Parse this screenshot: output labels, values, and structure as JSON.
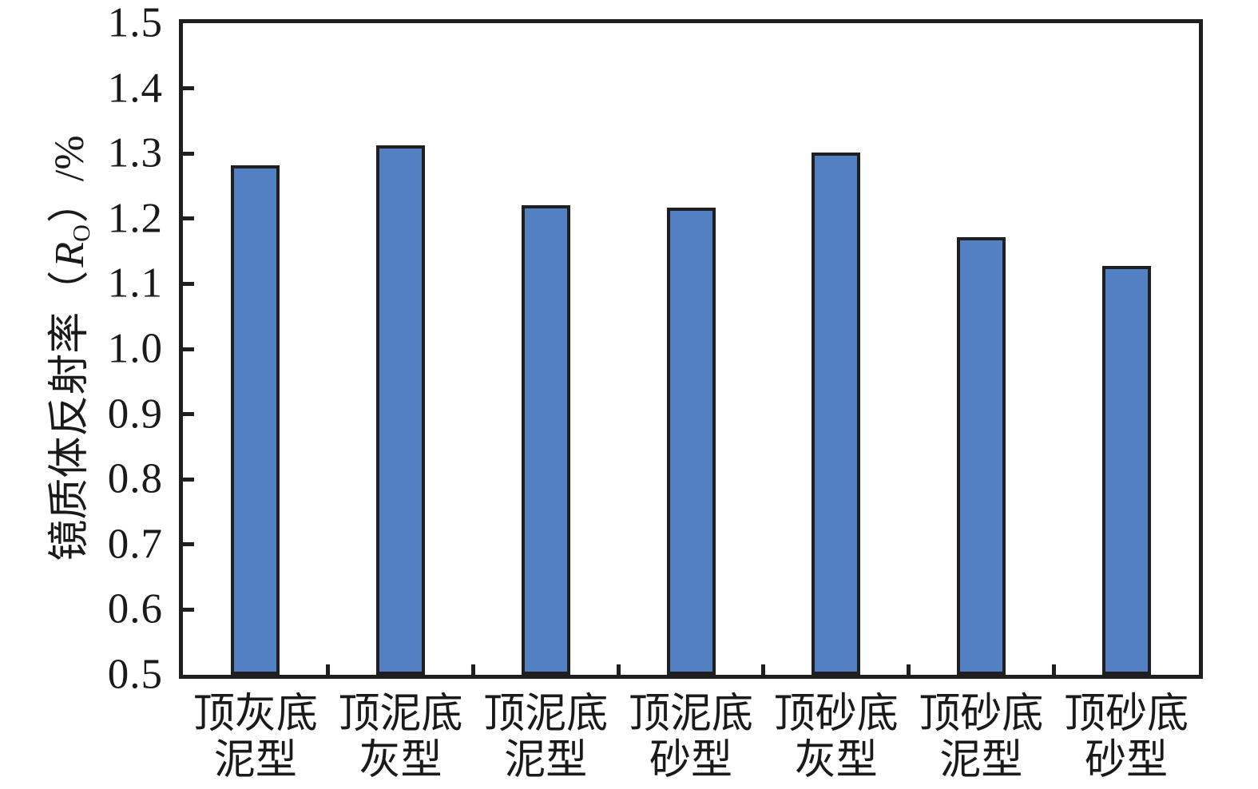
{
  "chart_data": {
    "type": "bar",
    "title": "",
    "xlabel": "",
    "ylabel": "镜质体反射率（R_O）/%",
    "ylabel_parts": {
      "prefix": "镜质体反射率（",
      "symbol": "R",
      "symbol_sub": "O",
      "suffix": "）/%"
    },
    "categories": [
      {
        "line1": "顶灰底",
        "line2": "泥型",
        "full": "顶灰底泥型"
      },
      {
        "line1": "顶泥底",
        "line2": "灰型",
        "full": "顶泥底灰型"
      },
      {
        "line1": "顶泥底",
        "line2": "泥型",
        "full": "顶泥底泥型"
      },
      {
        "line1": "顶泥底",
        "line2": "砂型",
        "full": "顶泥底砂型"
      },
      {
        "line1": "顶砂底",
        "line2": "灰型",
        "full": "顶砂底灰型"
      },
      {
        "line1": "顶砂底",
        "line2": "泥型",
        "full": "顶砂底泥型"
      },
      {
        "line1": "顶砂底",
        "line2": "砂型",
        "full": "顶砂底砂型"
      }
    ],
    "values": [
      1.282,
      1.312,
      1.221,
      1.217,
      1.301,
      1.172,
      1.128
    ],
    "ylim": [
      0.5,
      1.5
    ],
    "yticks": [
      0.5,
      0.6,
      0.7,
      0.8,
      0.9,
      1.0,
      1.1,
      1.2,
      1.3,
      1.4,
      1.5
    ],
    "ytick_labels": [
      "0.5",
      "0.6",
      "0.7",
      "0.8",
      "0.9",
      "1.0",
      "1.1",
      "1.2",
      "1.3",
      "1.4",
      "1.5"
    ],
    "grid": false,
    "legend": null,
    "colors": {
      "bar_fill": "#5280c2",
      "bar_border": "#1f1f1f",
      "axis": "#1f1f1f",
      "text": "#1a1a1a",
      "background": "#ffffff"
    }
  }
}
